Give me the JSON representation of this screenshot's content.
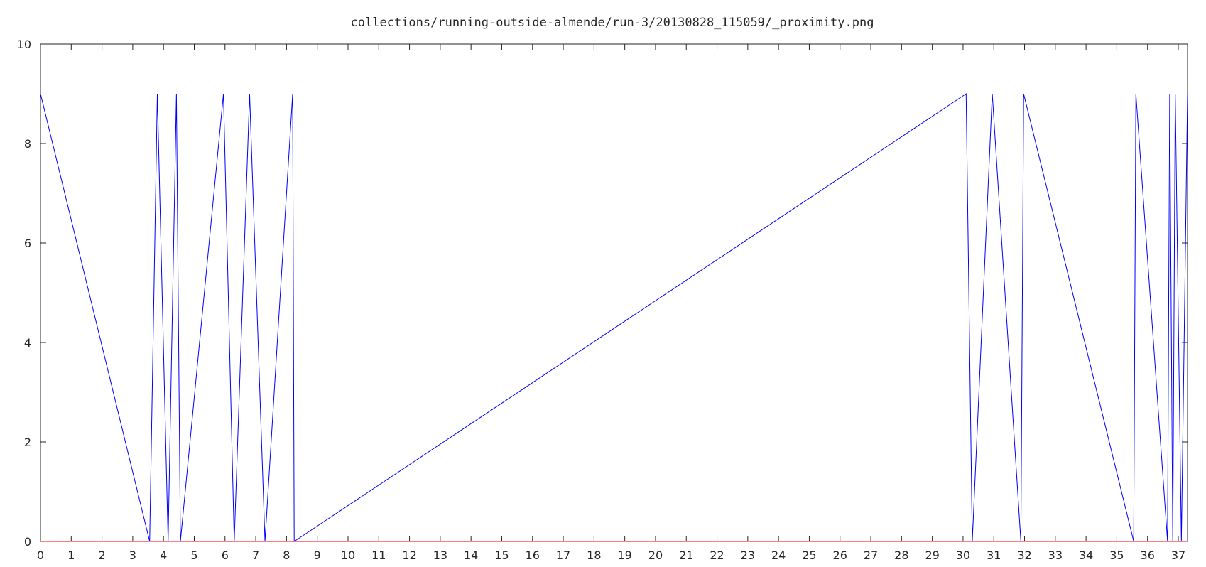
{
  "chart_data": {
    "type": "line",
    "title": "collections/running-outside-almende/run-3/20130828_115059/_proximity.png",
    "xlabel": "",
    "ylabel": "",
    "xlim": [
      0,
      37.3
    ],
    "ylim": [
      0,
      10
    ],
    "xticks": [
      "0",
      "1",
      "2",
      "3",
      "4",
      "5",
      "6",
      "7",
      "8",
      "9",
      "10",
      "11",
      "12",
      "13",
      "14",
      "15",
      "16",
      "17",
      "18",
      "19",
      "20",
      "21",
      "22",
      "23",
      "24",
      "25",
      "26",
      "27",
      "28",
      "29",
      "30",
      "31",
      "32",
      "33",
      "34",
      "35",
      "36",
      "37"
    ],
    "yticks": [
      "0",
      "2",
      "4",
      "6",
      "8",
      "10"
    ],
    "grid": false,
    "legend": "none",
    "series": [
      {
        "color": "#0000ff",
        "x": [
          0,
          3.55,
          3.8,
          4.15,
          4.42,
          4.55,
          5.95,
          6.3,
          6.8,
          7.3,
          8.2,
          8.25,
          30.1,
          30.3,
          30.95,
          31.88,
          31.97,
          35.55,
          35.62,
          36.65,
          36.72,
          36.82,
          36.9,
          37.1,
          37.3
        ],
        "y": [
          9,
          0,
          9,
          0,
          9,
          0,
          9,
          0,
          9,
          0,
          9,
          0,
          9,
          0,
          9,
          0,
          9,
          0,
          9,
          0,
          9,
          0,
          9,
          0,
          9
        ]
      },
      {
        "color": "#ff0000",
        "x": [
          0,
          37.3
        ],
        "y": [
          0,
          0
        ]
      }
    ]
  }
}
